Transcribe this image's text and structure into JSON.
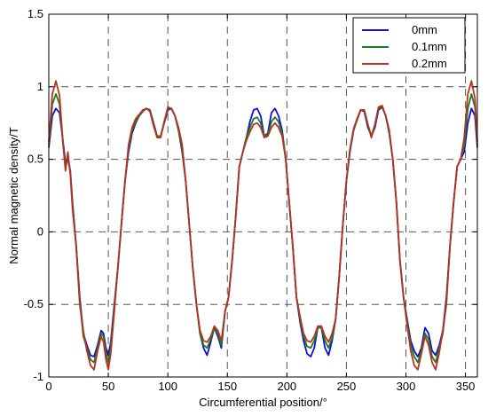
{
  "chart_data": {
    "type": "line",
    "xlabel": "Circumferential position/°",
    "ylabel": "Normal magnetic density/T",
    "xlim": [
      0,
      360
    ],
    "ylim": [
      -1,
      1.5
    ],
    "x_ticks": [
      0,
      50,
      100,
      150,
      200,
      250,
      300,
      350
    ],
    "y_ticks": [
      -1,
      -0.5,
      0,
      0.5,
      1,
      1.5
    ],
    "x_tick_labels": [
      "0",
      "50",
      "100",
      "150",
      "200",
      "250",
      "300",
      "350"
    ],
    "y_tick_labels": [
      "-1",
      "-0.5",
      "0",
      "0.5",
      "1",
      "1.5"
    ],
    "grid": true,
    "legend_position": "top-right",
    "series": [
      {
        "name": "0mm",
        "color": "#1010d8",
        "x": [
          0,
          3,
          6,
          9,
          12,
          14,
          16,
          18,
          20,
          23,
          26,
          29,
          32,
          35,
          38,
          41,
          44,
          46,
          48,
          50,
          52,
          55,
          58,
          61,
          64,
          67,
          70,
          73,
          76,
          79,
          82,
          85,
          88,
          91,
          94,
          97,
          100,
          103,
          106,
          109,
          112,
          115,
          118,
          121,
          124,
          127,
          130,
          133,
          136,
          139,
          142,
          145,
          148,
          151,
          154,
          157,
          160,
          163,
          166,
          169,
          172,
          175,
          178,
          181,
          184,
          187,
          190,
          193,
          196,
          199,
          202,
          205,
          208,
          211,
          214,
          217,
          220,
          223,
          226,
          229,
          232,
          235,
          238,
          241,
          244,
          247,
          250,
          253,
          256,
          259,
          262,
          265,
          268,
          271,
          274,
          277,
          280,
          283,
          286,
          289,
          292,
          295,
          298,
          301,
          304,
          307,
          310,
          313,
          316,
          319,
          322,
          325,
          328,
          331,
          334,
          337,
          340,
          343,
          346,
          349,
          352,
          355,
          358,
          360
        ],
        "y": [
          0.58,
          0.8,
          0.85,
          0.82,
          0.62,
          0.48,
          0.5,
          0.42,
          0.2,
          -0.1,
          -0.45,
          -0.7,
          -0.78,
          -0.85,
          -0.86,
          -0.78,
          -0.68,
          -0.7,
          -0.8,
          -0.85,
          -0.76,
          -0.5,
          -0.25,
          0.05,
          0.35,
          0.55,
          0.68,
          0.75,
          0.8,
          0.83,
          0.85,
          0.84,
          0.75,
          0.66,
          0.66,
          0.75,
          0.84,
          0.85,
          0.8,
          0.7,
          0.55,
          0.35,
          0.05,
          -0.25,
          -0.5,
          -0.7,
          -0.8,
          -0.85,
          -0.76,
          -0.66,
          -0.72,
          -0.8,
          -0.55,
          -0.45,
          -0.2,
          0.1,
          0.45,
          0.55,
          0.65,
          0.76,
          0.84,
          0.85,
          0.8,
          0.66,
          0.68,
          0.82,
          0.85,
          0.8,
          0.7,
          0.5,
          0.2,
          -0.1,
          -0.45,
          -0.62,
          -0.75,
          -0.84,
          -0.86,
          -0.8,
          -0.66,
          -0.66,
          -0.8,
          -0.85,
          -0.75,
          -0.6,
          -0.3,
          0.05,
          0.35,
          0.55,
          0.7,
          0.78,
          0.84,
          0.83,
          0.72,
          0.66,
          0.72,
          0.84,
          0.86,
          0.8,
          0.68,
          0.5,
          0.2,
          -0.2,
          -0.45,
          -0.6,
          -0.75,
          -0.82,
          -0.86,
          -0.8,
          -0.66,
          -0.7,
          -0.82,
          -0.85,
          -0.78,
          -0.68,
          -0.45,
          -0.1,
          0.2,
          0.45,
          0.5,
          0.55,
          0.75,
          0.85,
          0.8,
          0.58
        ]
      },
      {
        "name": "0.1mm",
        "color": "#1e7a1e",
        "x": [
          0,
          3,
          6,
          9,
          12,
          14,
          16,
          18,
          20,
          23,
          26,
          29,
          32,
          35,
          38,
          41,
          44,
          46,
          48,
          50,
          52,
          55,
          58,
          61,
          64,
          67,
          70,
          73,
          76,
          79,
          82,
          85,
          88,
          91,
          94,
          97,
          100,
          103,
          106,
          109,
          112,
          115,
          118,
          121,
          124,
          127,
          130,
          133,
          136,
          139,
          142,
          145,
          148,
          151,
          154,
          157,
          160,
          163,
          166,
          169,
          172,
          175,
          178,
          181,
          184,
          187,
          190,
          193,
          196,
          199,
          202,
          205,
          208,
          211,
          214,
          217,
          220,
          223,
          226,
          229,
          232,
          235,
          238,
          241,
          244,
          247,
          250,
          253,
          256,
          259,
          262,
          265,
          268,
          271,
          274,
          277,
          280,
          283,
          286,
          289,
          292,
          295,
          298,
          301,
          304,
          307,
          310,
          313,
          316,
          319,
          322,
          325,
          328,
          331,
          334,
          337,
          340,
          343,
          346,
          349,
          352,
          355,
          358,
          360
        ],
        "y": [
          0.6,
          0.88,
          0.95,
          0.88,
          0.6,
          0.45,
          0.52,
          0.42,
          0.18,
          -0.1,
          -0.48,
          -0.72,
          -0.8,
          -0.88,
          -0.9,
          -0.8,
          -0.7,
          -0.72,
          -0.83,
          -0.9,
          -0.8,
          -0.52,
          -0.25,
          0.05,
          0.35,
          0.57,
          0.7,
          0.76,
          0.8,
          0.83,
          0.85,
          0.84,
          0.74,
          0.66,
          0.66,
          0.76,
          0.85,
          0.85,
          0.8,
          0.7,
          0.57,
          0.35,
          0.05,
          -0.25,
          -0.5,
          -0.7,
          -0.78,
          -0.8,
          -0.74,
          -0.66,
          -0.7,
          -0.78,
          -0.55,
          -0.45,
          -0.2,
          0.1,
          0.45,
          0.55,
          0.65,
          0.72,
          0.78,
          0.79,
          0.75,
          0.66,
          0.67,
          0.76,
          0.79,
          0.76,
          0.68,
          0.5,
          0.2,
          -0.1,
          -0.45,
          -0.6,
          -0.72,
          -0.79,
          -0.8,
          -0.75,
          -0.66,
          -0.66,
          -0.75,
          -0.8,
          -0.73,
          -0.6,
          -0.3,
          0.05,
          0.35,
          0.56,
          0.7,
          0.77,
          0.84,
          0.84,
          0.74,
          0.66,
          0.74,
          0.85,
          0.86,
          0.8,
          0.68,
          0.5,
          0.2,
          -0.2,
          -0.45,
          -0.62,
          -0.78,
          -0.86,
          -0.9,
          -0.82,
          -0.7,
          -0.74,
          -0.86,
          -0.9,
          -0.8,
          -0.7,
          -0.48,
          -0.1,
          0.2,
          0.45,
          0.5,
          0.6,
          0.85,
          0.95,
          0.86,
          0.6
        ]
      },
      {
        "name": "0.2mm",
        "color": "#b8321e",
        "x": [
          0,
          3,
          6,
          9,
          12,
          14,
          16,
          18,
          20,
          23,
          26,
          29,
          32,
          35,
          38,
          41,
          44,
          46,
          48,
          50,
          52,
          55,
          58,
          61,
          64,
          67,
          70,
          73,
          76,
          79,
          82,
          85,
          88,
          91,
          94,
          97,
          100,
          103,
          106,
          109,
          112,
          115,
          118,
          121,
          124,
          127,
          130,
          133,
          136,
          139,
          142,
          145,
          148,
          151,
          154,
          157,
          160,
          163,
          166,
          169,
          172,
          175,
          178,
          181,
          184,
          187,
          190,
          193,
          196,
          199,
          202,
          205,
          208,
          211,
          214,
          217,
          220,
          223,
          226,
          229,
          232,
          235,
          238,
          241,
          244,
          247,
          250,
          253,
          256,
          259,
          262,
          265,
          268,
          271,
          274,
          277,
          280,
          283,
          286,
          289,
          292,
          295,
          298,
          301,
          304,
          307,
          310,
          313,
          316,
          319,
          322,
          325,
          328,
          331,
          334,
          337,
          340,
          343,
          346,
          349,
          352,
          355,
          358,
          360
        ],
        "y": [
          0.62,
          0.95,
          1.04,
          0.94,
          0.6,
          0.42,
          0.55,
          0.4,
          0.15,
          -0.1,
          -0.5,
          -0.68,
          -0.82,
          -0.92,
          -0.95,
          -0.82,
          -0.72,
          -0.76,
          -0.88,
          -0.95,
          -0.84,
          -0.55,
          -0.25,
          0.05,
          0.35,
          0.6,
          0.72,
          0.78,
          0.81,
          0.84,
          0.85,
          0.83,
          0.73,
          0.65,
          0.65,
          0.76,
          0.86,
          0.85,
          0.8,
          0.72,
          0.6,
          0.35,
          0.05,
          -0.25,
          -0.5,
          -0.68,
          -0.75,
          -0.76,
          -0.72,
          -0.65,
          -0.68,
          -0.75,
          -0.55,
          -0.45,
          -0.2,
          0.1,
          0.45,
          0.55,
          0.63,
          0.69,
          0.74,
          0.75,
          0.72,
          0.65,
          0.66,
          0.72,
          0.75,
          0.72,
          0.66,
          0.5,
          0.2,
          -0.1,
          -0.45,
          -0.58,
          -0.7,
          -0.75,
          -0.76,
          -0.72,
          -0.65,
          -0.65,
          -0.72,
          -0.76,
          -0.7,
          -0.6,
          -0.3,
          0.05,
          0.35,
          0.57,
          0.71,
          0.78,
          0.84,
          0.84,
          0.74,
          0.65,
          0.74,
          0.86,
          0.87,
          0.8,
          0.7,
          0.5,
          0.2,
          -0.2,
          -0.45,
          -0.64,
          -0.82,
          -0.92,
          -0.95,
          -0.84,
          -0.72,
          -0.78,
          -0.9,
          -0.95,
          -0.83,
          -0.68,
          -0.5,
          -0.1,
          0.2,
          0.45,
          0.5,
          0.65,
          0.95,
          1.04,
          0.92,
          0.62
        ]
      }
    ]
  }
}
